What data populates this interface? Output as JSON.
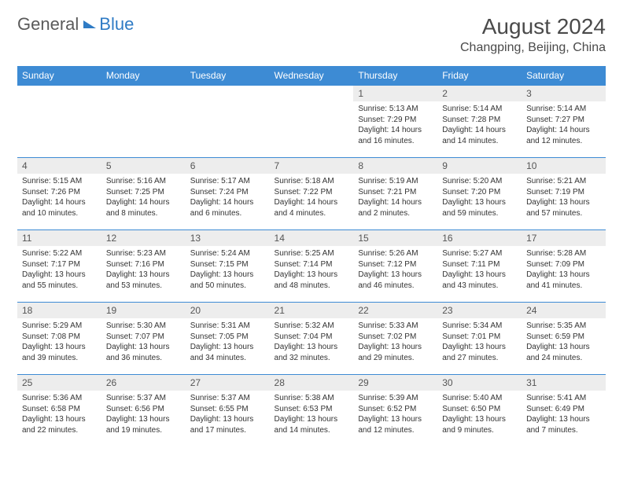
{
  "logo": {
    "part1": "General",
    "part2": "Blue"
  },
  "title": "August 2024",
  "location": "Changping, Beijing, China",
  "colors": {
    "header_bg": "#3d8bd4",
    "header_text": "#ffffff",
    "daynum_bg": "#ededed",
    "cell_border": "#3d8bd4",
    "logo_gray": "#5a5a5a",
    "logo_blue": "#2f7bc5",
    "title_text": "#4a4a4a",
    "body_text": "#333333",
    "background": "#ffffff"
  },
  "typography": {
    "month_title_size": 28,
    "location_size": 16,
    "weekday_size": 12,
    "daynum_size": 12,
    "cell_text_size": 10,
    "logo_size": 22
  },
  "weekdays": [
    "Sunday",
    "Monday",
    "Tuesday",
    "Wednesday",
    "Thursday",
    "Friday",
    "Saturday"
  ],
  "grid": [
    [
      {
        "empty": true
      },
      {
        "empty": true
      },
      {
        "empty": true
      },
      {
        "empty": true
      },
      {
        "day": "1",
        "sunrise": "Sunrise: 5:13 AM",
        "sunset": "Sunset: 7:29 PM",
        "daylight": "Daylight: 14 hours and 16 minutes."
      },
      {
        "day": "2",
        "sunrise": "Sunrise: 5:14 AM",
        "sunset": "Sunset: 7:28 PM",
        "daylight": "Daylight: 14 hours and 14 minutes."
      },
      {
        "day": "3",
        "sunrise": "Sunrise: 5:14 AM",
        "sunset": "Sunset: 7:27 PM",
        "daylight": "Daylight: 14 hours and 12 minutes."
      }
    ],
    [
      {
        "day": "4",
        "sunrise": "Sunrise: 5:15 AM",
        "sunset": "Sunset: 7:26 PM",
        "daylight": "Daylight: 14 hours and 10 minutes."
      },
      {
        "day": "5",
        "sunrise": "Sunrise: 5:16 AM",
        "sunset": "Sunset: 7:25 PM",
        "daylight": "Daylight: 14 hours and 8 minutes."
      },
      {
        "day": "6",
        "sunrise": "Sunrise: 5:17 AM",
        "sunset": "Sunset: 7:24 PM",
        "daylight": "Daylight: 14 hours and 6 minutes."
      },
      {
        "day": "7",
        "sunrise": "Sunrise: 5:18 AM",
        "sunset": "Sunset: 7:22 PM",
        "daylight": "Daylight: 14 hours and 4 minutes."
      },
      {
        "day": "8",
        "sunrise": "Sunrise: 5:19 AM",
        "sunset": "Sunset: 7:21 PM",
        "daylight": "Daylight: 14 hours and 2 minutes."
      },
      {
        "day": "9",
        "sunrise": "Sunrise: 5:20 AM",
        "sunset": "Sunset: 7:20 PM",
        "daylight": "Daylight: 13 hours and 59 minutes."
      },
      {
        "day": "10",
        "sunrise": "Sunrise: 5:21 AM",
        "sunset": "Sunset: 7:19 PM",
        "daylight": "Daylight: 13 hours and 57 minutes."
      }
    ],
    [
      {
        "day": "11",
        "sunrise": "Sunrise: 5:22 AM",
        "sunset": "Sunset: 7:17 PM",
        "daylight": "Daylight: 13 hours and 55 minutes."
      },
      {
        "day": "12",
        "sunrise": "Sunrise: 5:23 AM",
        "sunset": "Sunset: 7:16 PM",
        "daylight": "Daylight: 13 hours and 53 minutes."
      },
      {
        "day": "13",
        "sunrise": "Sunrise: 5:24 AM",
        "sunset": "Sunset: 7:15 PM",
        "daylight": "Daylight: 13 hours and 50 minutes."
      },
      {
        "day": "14",
        "sunrise": "Sunrise: 5:25 AM",
        "sunset": "Sunset: 7:14 PM",
        "daylight": "Daylight: 13 hours and 48 minutes."
      },
      {
        "day": "15",
        "sunrise": "Sunrise: 5:26 AM",
        "sunset": "Sunset: 7:12 PM",
        "daylight": "Daylight: 13 hours and 46 minutes."
      },
      {
        "day": "16",
        "sunrise": "Sunrise: 5:27 AM",
        "sunset": "Sunset: 7:11 PM",
        "daylight": "Daylight: 13 hours and 43 minutes."
      },
      {
        "day": "17",
        "sunrise": "Sunrise: 5:28 AM",
        "sunset": "Sunset: 7:09 PM",
        "daylight": "Daylight: 13 hours and 41 minutes."
      }
    ],
    [
      {
        "day": "18",
        "sunrise": "Sunrise: 5:29 AM",
        "sunset": "Sunset: 7:08 PM",
        "daylight": "Daylight: 13 hours and 39 minutes."
      },
      {
        "day": "19",
        "sunrise": "Sunrise: 5:30 AM",
        "sunset": "Sunset: 7:07 PM",
        "daylight": "Daylight: 13 hours and 36 minutes."
      },
      {
        "day": "20",
        "sunrise": "Sunrise: 5:31 AM",
        "sunset": "Sunset: 7:05 PM",
        "daylight": "Daylight: 13 hours and 34 minutes."
      },
      {
        "day": "21",
        "sunrise": "Sunrise: 5:32 AM",
        "sunset": "Sunset: 7:04 PM",
        "daylight": "Daylight: 13 hours and 32 minutes."
      },
      {
        "day": "22",
        "sunrise": "Sunrise: 5:33 AM",
        "sunset": "Sunset: 7:02 PM",
        "daylight": "Daylight: 13 hours and 29 minutes."
      },
      {
        "day": "23",
        "sunrise": "Sunrise: 5:34 AM",
        "sunset": "Sunset: 7:01 PM",
        "daylight": "Daylight: 13 hours and 27 minutes."
      },
      {
        "day": "24",
        "sunrise": "Sunrise: 5:35 AM",
        "sunset": "Sunset: 6:59 PM",
        "daylight": "Daylight: 13 hours and 24 minutes."
      }
    ],
    [
      {
        "day": "25",
        "sunrise": "Sunrise: 5:36 AM",
        "sunset": "Sunset: 6:58 PM",
        "daylight": "Daylight: 13 hours and 22 minutes."
      },
      {
        "day": "26",
        "sunrise": "Sunrise: 5:37 AM",
        "sunset": "Sunset: 6:56 PM",
        "daylight": "Daylight: 13 hours and 19 minutes."
      },
      {
        "day": "27",
        "sunrise": "Sunrise: 5:37 AM",
        "sunset": "Sunset: 6:55 PM",
        "daylight": "Daylight: 13 hours and 17 minutes."
      },
      {
        "day": "28",
        "sunrise": "Sunrise: 5:38 AM",
        "sunset": "Sunset: 6:53 PM",
        "daylight": "Daylight: 13 hours and 14 minutes."
      },
      {
        "day": "29",
        "sunrise": "Sunrise: 5:39 AM",
        "sunset": "Sunset: 6:52 PM",
        "daylight": "Daylight: 13 hours and 12 minutes."
      },
      {
        "day": "30",
        "sunrise": "Sunrise: 5:40 AM",
        "sunset": "Sunset: 6:50 PM",
        "daylight": "Daylight: 13 hours and 9 minutes."
      },
      {
        "day": "31",
        "sunrise": "Sunrise: 5:41 AM",
        "sunset": "Sunset: 6:49 PM",
        "daylight": "Daylight: 13 hours and 7 minutes."
      }
    ]
  ]
}
